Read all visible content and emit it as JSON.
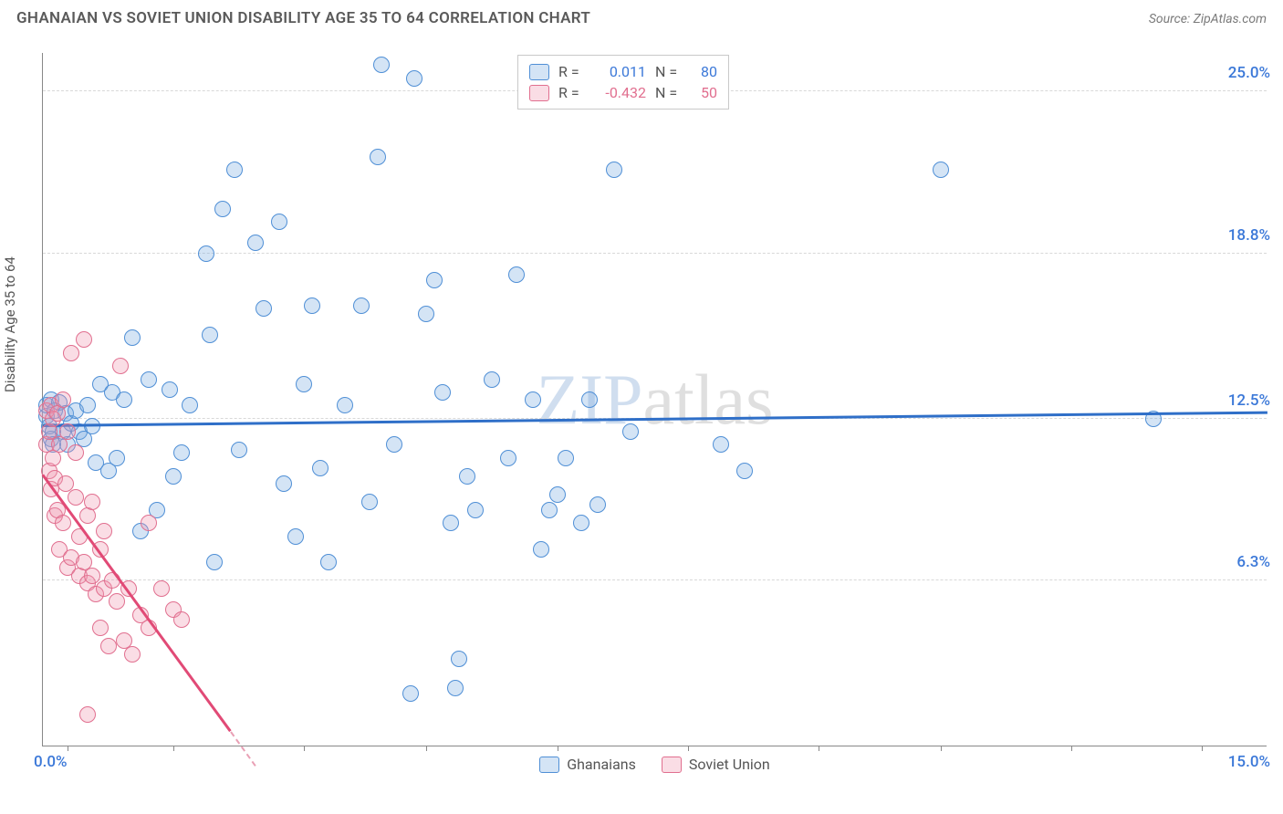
{
  "header": {
    "title": "GHANAIAN VS SOVIET UNION DISABILITY AGE 35 TO 64 CORRELATION CHART",
    "source": "Source: ZipAtlas.com"
  },
  "watermark": {
    "part1": "ZIP",
    "part2": "atlas"
  },
  "chart": {
    "type": "scatter",
    "ylabel": "Disability Age 35 to 64",
    "xlim": [
      0,
      15
    ],
    "ylim": [
      0,
      26.5
    ],
    "x_axis_label_min": "0.0%",
    "x_axis_label_max": "15.0%",
    "x_label_color": "#3b78d8",
    "xtick_positions": [
      0.3,
      1.6,
      3.2,
      4.7,
      6.3,
      7.9,
      9.5,
      11.0,
      12.6,
      14.2
    ],
    "yticks": [
      {
        "value": 6.3,
        "label": "6.3%",
        "color": "#3b78d8"
      },
      {
        "value": 12.5,
        "label": "12.5%",
        "color": "#3b78d8"
      },
      {
        "value": 18.8,
        "label": "18.8%",
        "color": "#3b78d8"
      },
      {
        "value": 25.0,
        "label": "25.0%",
        "color": "#3b78d8"
      }
    ],
    "background_color": "#ffffff",
    "grid_color": "#d8d8d8",
    "marker_radius": 9,
    "series": [
      {
        "name": "Ghanaians",
        "fill": "rgba(120,170,225,0.32)",
        "stroke": "#4f8fd6",
        "r_value": "0.011",
        "n_value": "80",
        "value_color": "#3b78d8",
        "trend": {
          "x1": 0,
          "y1": 12.2,
          "x2": 15,
          "y2": 12.7,
          "color": "#2f6fc8"
        },
        "points": [
          [
            0.05,
            12.6
          ],
          [
            0.05,
            13.0
          ],
          [
            0.08,
            12.2
          ],
          [
            0.1,
            11.7
          ],
          [
            0.1,
            13.2
          ],
          [
            0.12,
            12.0
          ],
          [
            0.15,
            12.8
          ],
          [
            0.12,
            11.5
          ],
          [
            0.2,
            13.1
          ],
          [
            0.25,
            12.0
          ],
          [
            0.28,
            12.7
          ],
          [
            0.3,
            11.5
          ],
          [
            0.35,
            12.3
          ],
          [
            0.4,
            12.8
          ],
          [
            0.45,
            12.0
          ],
          [
            0.5,
            11.7
          ],
          [
            0.55,
            13.0
          ],
          [
            0.6,
            12.2
          ],
          [
            0.65,
            10.8
          ],
          [
            0.7,
            13.8
          ],
          [
            0.8,
            10.5
          ],
          [
            0.85,
            13.5
          ],
          [
            0.9,
            11.0
          ],
          [
            1.0,
            13.2
          ],
          [
            1.1,
            15.6
          ],
          [
            1.2,
            8.2
          ],
          [
            1.3,
            14.0
          ],
          [
            1.4,
            9.0
          ],
          [
            1.55,
            13.6
          ],
          [
            1.6,
            10.3
          ],
          [
            1.7,
            11.2
          ],
          [
            1.8,
            13.0
          ],
          [
            2.0,
            18.8
          ],
          [
            2.05,
            15.7
          ],
          [
            2.1,
            7.0
          ],
          [
            2.2,
            20.5
          ],
          [
            2.35,
            22.0
          ],
          [
            2.4,
            11.3
          ],
          [
            2.6,
            19.2
          ],
          [
            2.7,
            16.7
          ],
          [
            2.9,
            20.0
          ],
          [
            2.95,
            10.0
          ],
          [
            3.1,
            8.0
          ],
          [
            3.2,
            13.8
          ],
          [
            3.3,
            16.8
          ],
          [
            3.4,
            10.6
          ],
          [
            3.5,
            7.0
          ],
          [
            3.7,
            13.0
          ],
          [
            3.9,
            16.8
          ],
          [
            4.0,
            9.3
          ],
          [
            4.1,
            22.5
          ],
          [
            4.15,
            26.0
          ],
          [
            4.3,
            11.5
          ],
          [
            4.5,
            2.0
          ],
          [
            4.55,
            25.5
          ],
          [
            4.7,
            16.5
          ],
          [
            4.8,
            17.8
          ],
          [
            4.9,
            13.5
          ],
          [
            5.0,
            8.5
          ],
          [
            5.05,
            2.2
          ],
          [
            5.1,
            3.3
          ],
          [
            5.2,
            10.3
          ],
          [
            5.3,
            9.0
          ],
          [
            5.5,
            14.0
          ],
          [
            5.7,
            11.0
          ],
          [
            5.8,
            18.0
          ],
          [
            6.0,
            13.2
          ],
          [
            6.1,
            7.5
          ],
          [
            6.2,
            9.0
          ],
          [
            6.3,
            9.6
          ],
          [
            6.4,
            11.0
          ],
          [
            6.6,
            8.5
          ],
          [
            6.7,
            13.2
          ],
          [
            6.8,
            9.2
          ],
          [
            7.0,
            22.0
          ],
          [
            7.2,
            12.0
          ],
          [
            8.3,
            11.5
          ],
          [
            8.6,
            10.5
          ],
          [
            11.0,
            22.0
          ],
          [
            13.6,
            12.5
          ]
        ]
      },
      {
        "name": "Soviet Union",
        "fill": "rgba(240,150,175,0.32)",
        "stroke": "#e16f8f",
        "r_value": "-0.432",
        "n_value": "50",
        "value_color": "#e16f8f",
        "trend": {
          "x1": 0,
          "y1": 10.3,
          "x2": 2.3,
          "y2": 0.5,
          "color": "#e14a76"
        },
        "trend_dash": {
          "x1": 2.3,
          "y1": 0.5,
          "x2": 2.6,
          "y2": -0.8,
          "color": "#e9a0b5"
        },
        "points": [
          [
            0.05,
            12.8
          ],
          [
            0.05,
            11.5
          ],
          [
            0.08,
            10.5
          ],
          [
            0.08,
            12.0
          ],
          [
            0.1,
            13.0
          ],
          [
            0.1,
            9.8
          ],
          [
            0.12,
            11.0
          ],
          [
            0.12,
            12.5
          ],
          [
            0.15,
            10.2
          ],
          [
            0.15,
            8.8
          ],
          [
            0.18,
            12.7
          ],
          [
            0.18,
            9.0
          ],
          [
            0.2,
            11.5
          ],
          [
            0.2,
            7.5
          ],
          [
            0.25,
            13.2
          ],
          [
            0.25,
            8.5
          ],
          [
            0.28,
            10.0
          ],
          [
            0.3,
            12.0
          ],
          [
            0.3,
            6.8
          ],
          [
            0.35,
            15.0
          ],
          [
            0.35,
            7.2
          ],
          [
            0.4,
            9.5
          ],
          [
            0.4,
            11.2
          ],
          [
            0.45,
            6.5
          ],
          [
            0.45,
            8.0
          ],
          [
            0.5,
            7.0
          ],
          [
            0.5,
            15.5
          ],
          [
            0.55,
            6.2
          ],
          [
            0.55,
            8.8
          ],
          [
            0.6,
            6.5
          ],
          [
            0.6,
            9.3
          ],
          [
            0.65,
            5.8
          ],
          [
            0.7,
            7.5
          ],
          [
            0.7,
            4.5
          ],
          [
            0.75,
            6.0
          ],
          [
            0.75,
            8.2
          ],
          [
            0.8,
            3.8
          ],
          [
            0.85,
            6.3
          ],
          [
            0.9,
            5.5
          ],
          [
            0.95,
            14.5
          ],
          [
            1.0,
            4.0
          ],
          [
            1.05,
            6.0
          ],
          [
            1.1,
            3.5
          ],
          [
            1.2,
            5.0
          ],
          [
            1.3,
            4.5
          ],
          [
            1.3,
            8.5
          ],
          [
            1.45,
            6.0
          ],
          [
            1.6,
            5.2
          ],
          [
            1.7,
            4.8
          ],
          [
            0.55,
            1.2
          ]
        ]
      }
    ],
    "bottom_legend": [
      {
        "label": "Ghanaians",
        "fill": "rgba(120,170,225,0.32)",
        "stroke": "#4f8fd6"
      },
      {
        "label": "Soviet Union",
        "fill": "rgba(240,150,175,0.32)",
        "stroke": "#e16f8f"
      }
    ]
  }
}
